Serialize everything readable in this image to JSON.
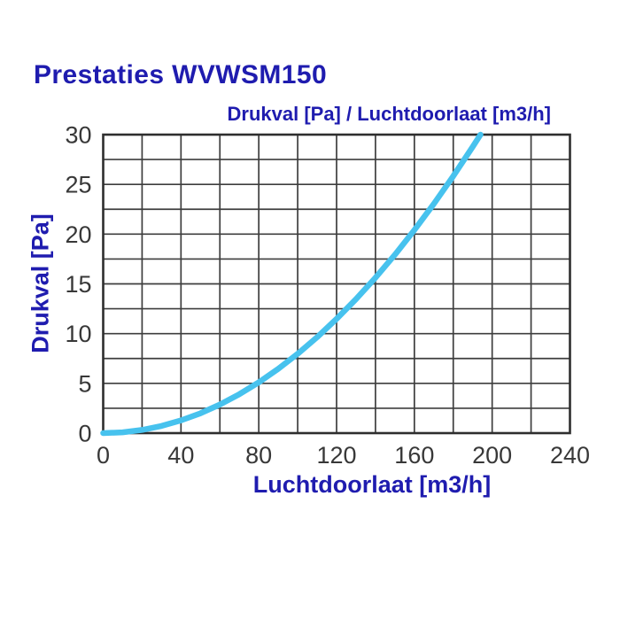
{
  "page": {
    "background": "#ffffff"
  },
  "colors": {
    "accent_blue": "#1f1caf",
    "curve": "#47c2ee",
    "grid_line": "#3e3e3e",
    "plot_border": "#2e2e2e",
    "tick_text": "#383838"
  },
  "chart_data": {
    "type": "line",
    "title": "Prestaties WVWSM150",
    "subtitle": "Drukval [Pa] / Luchtdoorlaat [m3/h]",
    "xlabel": "Luchtdoorlaat [m3/h]",
    "ylabel": "Drukval [Pa]",
    "xlim": [
      0,
      240
    ],
    "ylim": [
      0,
      30
    ],
    "x_ticks": [
      0,
      40,
      80,
      120,
      160,
      200,
      240
    ],
    "y_ticks": [
      0,
      5,
      10,
      15,
      20,
      25,
      30
    ],
    "x_grid_step": 20,
    "y_grid_step": 2.5,
    "grid": true,
    "legend": "none",
    "series": [
      {
        "name": "Drukval",
        "color": "#47c2ee",
        "x": [
          0,
          10,
          20,
          30,
          40,
          50,
          60,
          70,
          80,
          90,
          100,
          110,
          120,
          130,
          140,
          150,
          160,
          170,
          180,
          190,
          194
        ],
        "y": [
          0,
          0.08,
          0.32,
          0.72,
          1.28,
          1.99,
          2.87,
          3.91,
          5.1,
          6.46,
          7.97,
          9.64,
          11.48,
          13.47,
          15.62,
          17.93,
          20.41,
          23.04,
          25.83,
          28.78,
          30
        ]
      }
    ]
  }
}
